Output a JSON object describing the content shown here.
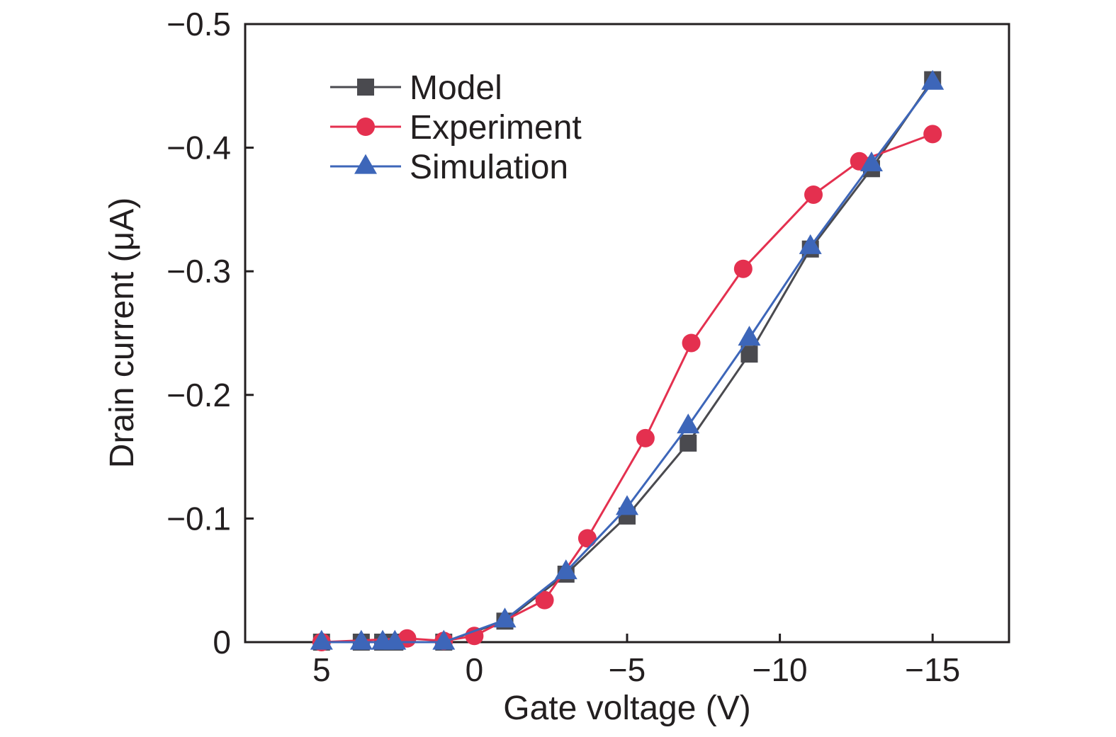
{
  "chart_data": {
    "type": "line",
    "title": "",
    "xlabel": "Gate voltage (V)",
    "ylabel": "Drain current (μA)",
    "xlim": [
      7.5,
      -17.5
    ],
    "ylim": [
      0,
      -0.5
    ],
    "x_ticks": [
      5,
      0,
      -5,
      -10,
      -15
    ],
    "x_tick_labels": [
      "5",
      "0",
      "−5",
      "−10",
      "−15"
    ],
    "y_ticks": [
      0,
      -0.1,
      -0.2,
      -0.3,
      -0.4,
      -0.5
    ],
    "y_tick_labels": [
      "0",
      "−0.1",
      "−0.2",
      "−0.3",
      "−0.4",
      "−0.5"
    ],
    "grid": false,
    "legend_position": "top-left",
    "series": [
      {
        "name": "Model",
        "marker": "square",
        "color": "#4a4a4f",
        "x": [
          5,
          3.7,
          3,
          2.6,
          1,
          -1,
          -3,
          -5,
          -7,
          -9,
          -11,
          -13,
          -15
        ],
        "y": [
          0,
          0,
          0,
          0,
          0,
          -0.017,
          -0.055,
          -0.102,
          -0.161,
          -0.233,
          -0.318,
          -0.383,
          -0.455
        ]
      },
      {
        "name": "Experiment",
        "marker": "circle",
        "color": "#e4304f",
        "x": [
          5,
          2.2,
          1,
          0,
          -2.3,
          -3.7,
          -5.6,
          -7.1,
          -8.8,
          -11.1,
          -12.6,
          -15
        ],
        "y": [
          0,
          -0.003,
          -0.001,
          -0.005,
          -0.034,
          -0.084,
          -0.165,
          -0.242,
          -0.302,
          -0.362,
          -0.389,
          -0.411
        ]
      },
      {
        "name": "Simulation",
        "marker": "triangle",
        "color": "#3d66b9",
        "x": [
          5,
          3.7,
          3,
          2.6,
          1,
          -1,
          -3,
          -5,
          -7,
          -9,
          -11,
          -13,
          -15
        ],
        "y": [
          0,
          0,
          0,
          0,
          0,
          -0.018,
          -0.057,
          -0.109,
          -0.175,
          -0.246,
          -0.32,
          -0.387,
          -0.453
        ]
      }
    ]
  }
}
